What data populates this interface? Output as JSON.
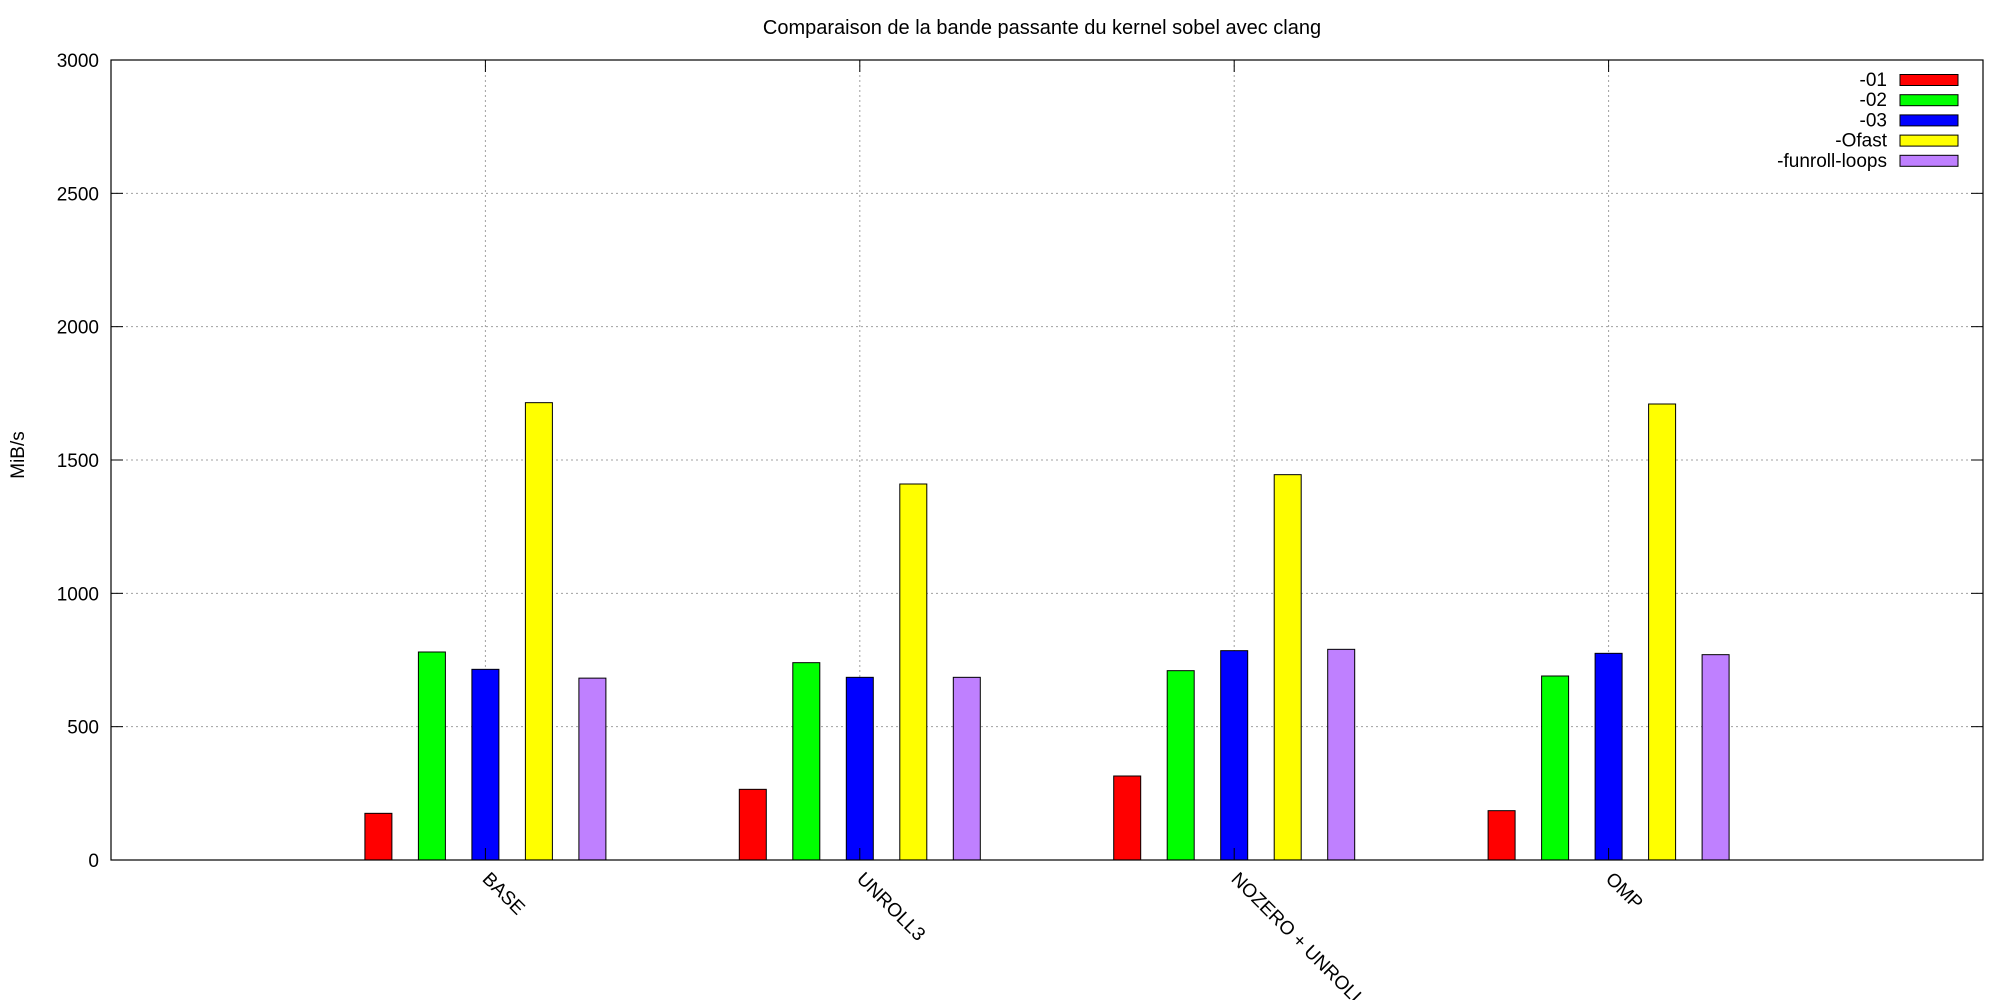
{
  "chart_data": {
    "type": "bar",
    "title": "Comparaison de la bande passante du kernel sobel avec clang",
    "xlabel": "",
    "ylabel": "MiB/s",
    "ylim": [
      0,
      3000
    ],
    "yticks": [
      0,
      500,
      1000,
      1500,
      2000,
      2500,
      3000
    ],
    "grid": true,
    "legend_position": "top-right",
    "categories": [
      "BASE",
      "UNROLL3",
      "NOZERO + UNROLL",
      "OMP"
    ],
    "series": [
      {
        "name": "-01",
        "color": "#ff0000",
        "values": [
          175,
          265,
          315,
          185
        ]
      },
      {
        "name": "-02",
        "color": "#00ff00",
        "values": [
          780,
          740,
          710,
          690
        ]
      },
      {
        "name": "-03",
        "color": "#0000ff",
        "values": [
          715,
          685,
          785,
          775
        ]
      },
      {
        "name": "-Ofast",
        "color": "#ffff00",
        "values": [
          1715,
          1410,
          1445,
          1710
        ]
      },
      {
        "name": "-funroll-loops",
        "color": "#bf80ff",
        "values": [
          682,
          685,
          790,
          770
        ]
      }
    ]
  }
}
